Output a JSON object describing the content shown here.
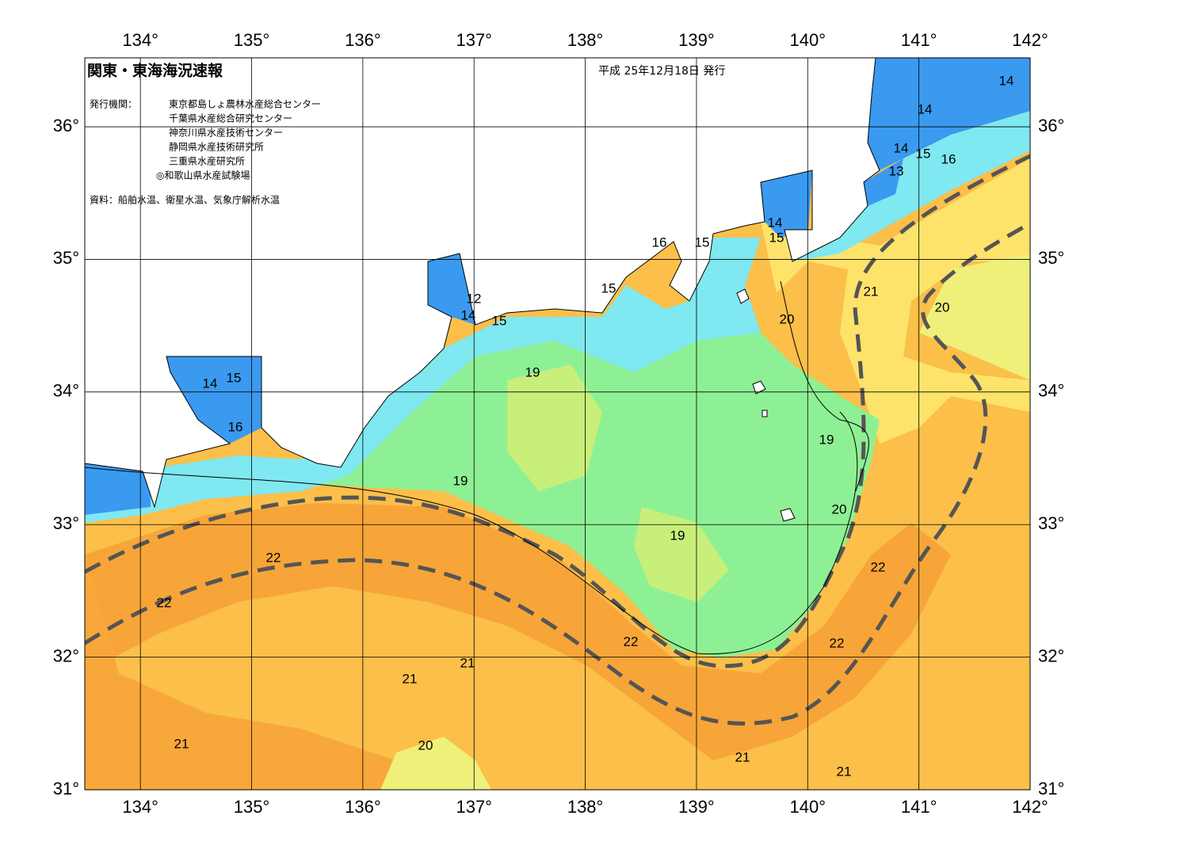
{
  "header": {
    "title": "関東・東海海況速報",
    "date": "平成 25年12月18日 発行",
    "issuer_label": "発行機関：",
    "issuers": [
      "東京都島しょ農林水産総合センター",
      "千葉県水産総合研究センター",
      "神奈川県水産技術センター",
      "静岡県水産技術研究所",
      "三重県水産研究所",
      "◎和歌山県水産試験場"
    ],
    "source": "資料：船舶水温、衛星水温、気象庁解析水温"
  },
  "map": {
    "lon_ticks": [
      {
        "value": 134,
        "label": "134°"
      },
      {
        "value": 135,
        "label": "135°"
      },
      {
        "value": 136,
        "label": "136°"
      },
      {
        "value": 137,
        "label": "137°"
      },
      {
        "value": 138,
        "label": "138°"
      },
      {
        "value": 139,
        "label": "139°"
      },
      {
        "value": 140,
        "label": "140°"
      },
      {
        "value": 141,
        "label": "141°"
      },
      {
        "value": 142,
        "label": "142°"
      }
    ],
    "lat_ticks": [
      {
        "value": 31,
        "label": "31°"
      },
      {
        "value": 32,
        "label": "32°"
      },
      {
        "value": 33,
        "label": "33°"
      },
      {
        "value": 34,
        "label": "34°"
      },
      {
        "value": 35,
        "label": "35°"
      },
      {
        "value": 36,
        "label": "36°"
      }
    ],
    "contour_labels": [
      14,
      14,
      14,
      15,
      16,
      13,
      14,
      15,
      16,
      15,
      15,
      12,
      14,
      15,
      21,
      20,
      20,
      19,
      15,
      14,
      16,
      19,
      19,
      20,
      19,
      22,
      22,
      22,
      22,
      22,
      21,
      21,
      21,
      20,
      21,
      21
    ]
  }
}
